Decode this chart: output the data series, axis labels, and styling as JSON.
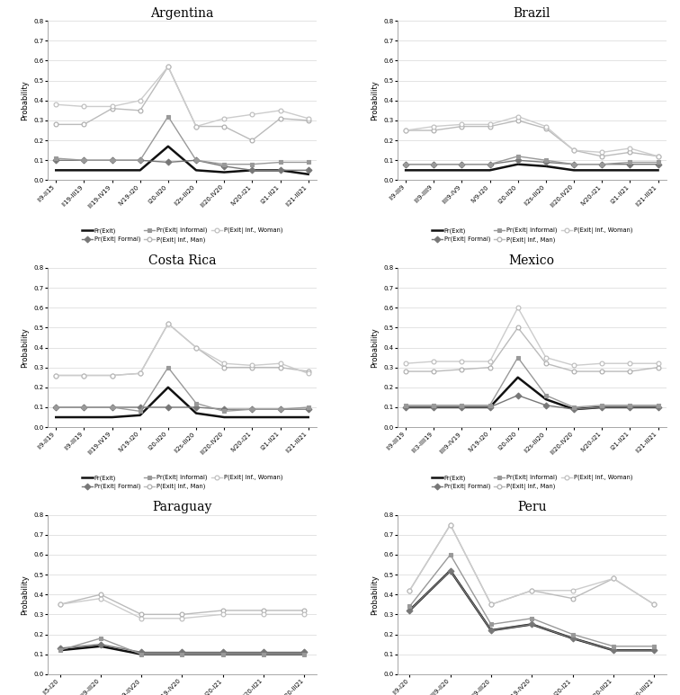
{
  "countries": [
    "Argentina",
    "Brazil",
    "Costa Rica",
    "Mexico",
    "Paraguay",
    "Peru"
  ],
  "series_keys": [
    "Pr(Exit)",
    "Pr(Exit| Formal)",
    "Pr(Exit| Informal)",
    "P(Exit| Inf., Man)",
    "P(Exit| Inf., Woman)"
  ],
  "series_styles": {
    "Pr(Exit)": {
      "color": "#111111",
      "lw": 1.8,
      "marker": null,
      "ms": 3.5,
      "mfc": "#111111",
      "mec": "#111111"
    },
    "Pr(Exit| Formal)": {
      "color": "#777777",
      "lw": 1.0,
      "marker": "D",
      "ms": 3.5,
      "mfc": "#777777",
      "mec": "#777777"
    },
    "Pr(Exit| Informal)": {
      "color": "#999999",
      "lw": 1.0,
      "marker": "s",
      "ms": 3.5,
      "mfc": "#999999",
      "mec": "#999999"
    },
    "P(Exit| Inf., Man)": {
      "color": "#bbbbbb",
      "lw": 1.0,
      "marker": "o",
      "ms": 3.5,
      "mfc": "#ffffff",
      "mec": "#aaaaaa"
    },
    "P(Exit| Inf., Woman)": {
      "color": "#cccccc",
      "lw": 1.0,
      "marker": "o",
      "ms": 3.5,
      "mfc": "#ffffff",
      "mec": "#bbbbbb"
    }
  },
  "ylim": [
    0.0,
    0.8
  ],
  "yticks": [
    0.0,
    0.1,
    0.2,
    0.3,
    0.4,
    0.5,
    0.6,
    0.7,
    0.8
  ],
  "data": {
    "Argentina": {
      "xlabels": [
        "II9-II15",
        "II19-III19",
        "III19-IV19",
        "IV19-I20",
        "I20-II20",
        "II2s-III20",
        "III20-IV20",
        "IV20-I21",
        "I21-II21",
        "II21-III21"
      ],
      "Pr(Exit)": [
        0.05,
        0.05,
        0.05,
        0.05,
        0.17,
        0.05,
        0.04,
        0.05,
        0.05,
        0.03
      ],
      "Pr(Exit| Formal)": [
        0.1,
        0.1,
        0.1,
        0.1,
        0.09,
        0.1,
        0.07,
        0.05,
        0.05,
        0.05
      ],
      "Pr(Exit| Informal)": [
        0.11,
        0.1,
        0.1,
        0.1,
        0.32,
        0.1,
        0.08,
        0.08,
        0.09,
        0.09
      ],
      "P(Exit| Inf., Man)": [
        0.28,
        0.28,
        0.36,
        0.35,
        0.57,
        0.27,
        0.27,
        0.2,
        0.31,
        0.3
      ],
      "P(Exit| Inf., Woman)": [
        0.38,
        0.37,
        0.37,
        0.4,
        0.57,
        0.27,
        0.31,
        0.33,
        0.35,
        0.31
      ]
    },
    "Brazil": {
      "xlabels": [
        "II9-III9",
        "III9-IIII9",
        "IIII9-IV9",
        "IV9-I20",
        "I20-II20",
        "II2s-III20",
        "III20-IV20",
        "IV20-I21",
        "I21-II21",
        "II21-III21"
      ],
      "Pr(Exit)": [
        0.05,
        0.05,
        0.05,
        0.05,
        0.08,
        0.07,
        0.05,
        0.05,
        0.05,
        0.05
      ],
      "Pr(Exit| Formal)": [
        0.08,
        0.08,
        0.08,
        0.08,
        0.1,
        0.09,
        0.08,
        0.08,
        0.08,
        0.08
      ],
      "Pr(Exit| Informal)": [
        0.08,
        0.08,
        0.08,
        0.08,
        0.12,
        0.1,
        0.08,
        0.08,
        0.09,
        0.09
      ],
      "P(Exit| Inf., Man)": [
        0.25,
        0.25,
        0.27,
        0.27,
        0.3,
        0.26,
        0.15,
        0.12,
        0.14,
        0.12
      ],
      "P(Exit| Inf., Woman)": [
        0.25,
        0.27,
        0.28,
        0.28,
        0.32,
        0.27,
        0.15,
        0.14,
        0.16,
        0.12
      ]
    },
    "Costa Rica": {
      "xlabels": [
        "II9-II19",
        "II9-III19",
        "III19-IV19",
        "IV19-I20",
        "I20-II20",
        "II2s-III20",
        "III20-IV20",
        "IV20-I21",
        "I21-II21",
        "II21-III21"
      ],
      "Pr(Exit)": [
        0.05,
        0.05,
        0.05,
        0.06,
        0.2,
        0.07,
        0.05,
        0.05,
        0.05,
        0.05
      ],
      "Pr(Exit| Formal)": [
        0.1,
        0.1,
        0.1,
        0.1,
        0.1,
        0.1,
        0.09,
        0.09,
        0.09,
        0.09
      ],
      "Pr(Exit| Informal)": [
        0.1,
        0.1,
        0.1,
        0.08,
        0.3,
        0.12,
        0.08,
        0.09,
        0.09,
        0.1
      ],
      "P(Exit| Inf., Man)": [
        0.26,
        0.26,
        0.26,
        0.27,
        0.52,
        0.4,
        0.3,
        0.3,
        0.3,
        0.28
      ],
      "P(Exit| Inf., Woman)": [
        0.26,
        0.26,
        0.26,
        0.27,
        0.52,
        0.4,
        0.32,
        0.31,
        0.32,
        0.27
      ]
    },
    "Mexico": {
      "xlabels": [
        "II9-III19",
        "III3-IIII19",
        "IIII9-IV19",
        "IV19-I20",
        "I20-II20",
        "II2s-III20",
        "III20-IV20",
        "IV20-I21",
        "I21-II21",
        "II21-III21"
      ],
      "Pr(Exit)": [
        0.1,
        0.1,
        0.1,
        0.1,
        0.25,
        0.14,
        0.09,
        0.1,
        0.1,
        0.1
      ],
      "Pr(Exit| Formal)": [
        0.1,
        0.1,
        0.1,
        0.1,
        0.16,
        0.11,
        0.09,
        0.1,
        0.1,
        0.1
      ],
      "Pr(Exit| Informal)": [
        0.11,
        0.11,
        0.11,
        0.11,
        0.35,
        0.16,
        0.1,
        0.11,
        0.11,
        0.11
      ],
      "P(Exit| Inf., Man)": [
        0.28,
        0.28,
        0.29,
        0.3,
        0.5,
        0.32,
        0.28,
        0.28,
        0.28,
        0.3
      ],
      "P(Exit| Inf., Woman)": [
        0.32,
        0.33,
        0.33,
        0.33,
        0.6,
        0.35,
        0.31,
        0.32,
        0.32,
        0.32
      ]
    },
    "Paraguay": {
      "xlabels": [
        "II5-I20",
        "III9-III20",
        "IIII9-IIV20",
        "IV19-IV20",
        "I20-I21",
        "II20-II21",
        "III20-III21"
      ],
      "Pr(Exit)": [
        0.12,
        0.14,
        0.1,
        0.1,
        0.1,
        0.1,
        0.1
      ],
      "Pr(Exit| Formal)": [
        0.13,
        0.15,
        0.11,
        0.11,
        0.11,
        0.11,
        0.11
      ],
      "Pr(Exit| Informal)": [
        0.12,
        0.18,
        0.1,
        0.1,
        0.1,
        0.1,
        0.1
      ],
      "P(Exit| Inf., Man)": [
        0.35,
        0.4,
        0.3,
        0.3,
        0.32,
        0.32,
        0.32
      ],
      "P(Exit| Inf., Woman)": [
        0.35,
        0.38,
        0.28,
        0.28,
        0.3,
        0.3,
        0.3
      ]
    },
    "Peru": {
      "xlabels": [
        "II9-I20",
        "IIII9-II20",
        "IIII9-III20",
        "IV19-IV20",
        "I20-I21",
        "III20-III21",
        "IIII20-IIII21"
      ],
      "Pr(Exit)": [
        0.32,
        0.52,
        0.22,
        0.25,
        0.18,
        0.12,
        0.12
      ],
      "Pr(Exit| Formal)": [
        0.32,
        0.52,
        0.22,
        0.25,
        0.18,
        0.12,
        0.12
      ],
      "Pr(Exit| Informal)": [
        0.34,
        0.6,
        0.25,
        0.28,
        0.2,
        0.14,
        0.14
      ],
      "P(Exit| Inf., Man)": [
        0.42,
        0.75,
        0.35,
        0.42,
        0.38,
        0.48,
        0.35
      ],
      "P(Exit| Inf., Woman)": [
        0.42,
        0.75,
        0.35,
        0.42,
        0.42,
        0.48,
        0.35
      ]
    }
  }
}
